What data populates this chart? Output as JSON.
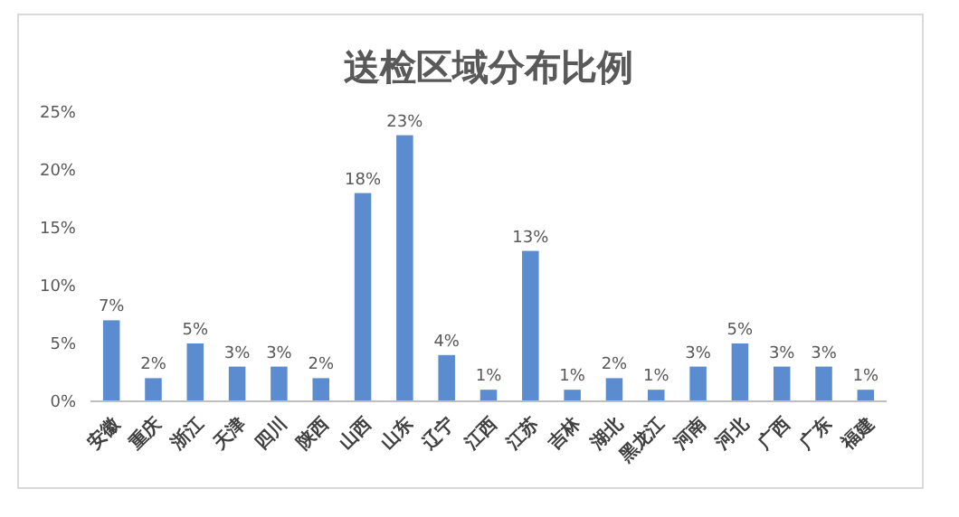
{
  "chart_data": {
    "type": "bar",
    "title": "送检区域分布比例",
    "categories": [
      "安徽",
      "重庆",
      "浙江",
      "天津",
      "四川",
      "陕西",
      "山西",
      "山东",
      "辽宁",
      "江西",
      "江苏",
      "吉林",
      "湖北",
      "黑龙江",
      "河南",
      "河北",
      "广西",
      "广东",
      "福建"
    ],
    "values": [
      7,
      2,
      5,
      3,
      3,
      2,
      18,
      23,
      4,
      1,
      13,
      1,
      2,
      1,
      3,
      5,
      3,
      3,
      1
    ],
    "value_labels": [
      "7%",
      "2%",
      "5%",
      "3%",
      "3%",
      "2%",
      "18%",
      "23%",
      "4%",
      "1%",
      "13%",
      "1%",
      "2%",
      "1%",
      "3%",
      "5%",
      "3%",
      "3%",
      "1%"
    ],
    "color": "#5b8ccf",
    "ylim": [
      0,
      25
    ],
    "yticks": [
      {
        "value": 0,
        "label": "0%"
      },
      {
        "value": 5,
        "label": "5%"
      },
      {
        "value": 10,
        "label": "10%"
      },
      {
        "value": 15,
        "label": "15%"
      },
      {
        "value": 20,
        "label": "20%"
      },
      {
        "value": 25,
        "label": "25%"
      }
    ],
    "grid": false
  }
}
